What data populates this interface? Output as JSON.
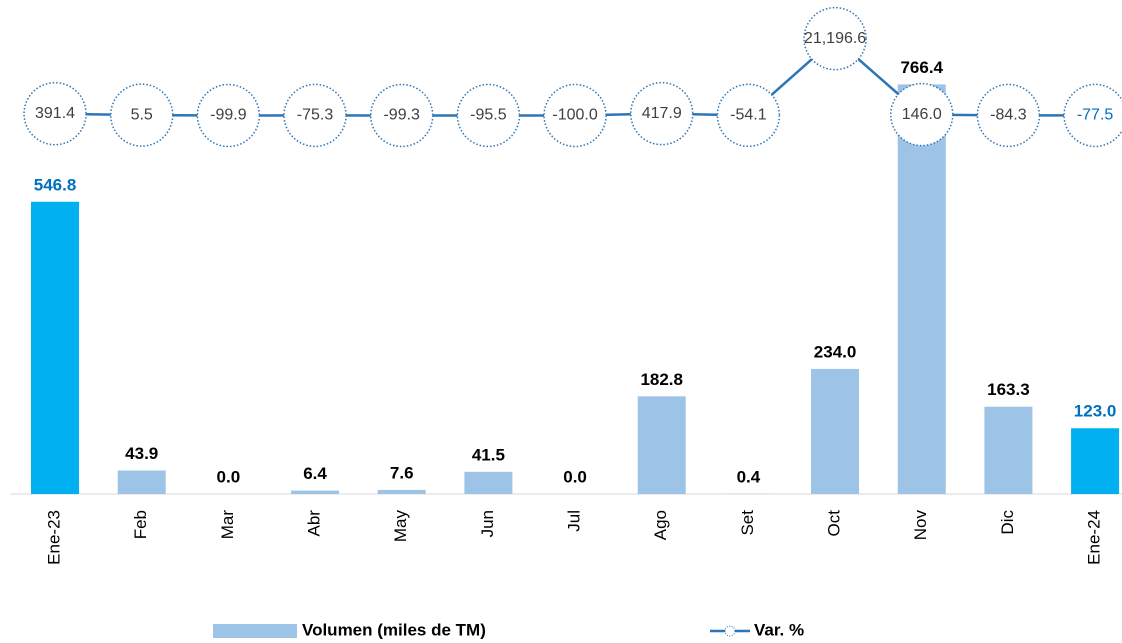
{
  "chart_data": {
    "type": "bar",
    "categories": [
      "Ene-23",
      "Feb",
      "Mar",
      "Abr",
      "May",
      "Jun",
      "Jul",
      "Ago",
      "Set",
      "Oct",
      "Nov",
      "Dic",
      "Ene-24"
    ],
    "series": [
      {
        "name": "Volumen (miles de TM)",
        "type": "bar",
        "axis": "y",
        "color": "#9dc3e6",
        "colors": [
          "#00b0f0",
          "#9dc3e6",
          "#9dc3e6",
          "#9dc3e6",
          "#9dc3e6",
          "#9dc3e6",
          "#9dc3e6",
          "#9dc3e6",
          "#9dc3e6",
          "#9dc3e6",
          "#9dc3e6",
          "#9dc3e6",
          "#00b0f0"
        ],
        "label_colors": [
          "#0070c0",
          "#000000",
          "#000000",
          "#000000",
          "#000000",
          "#000000",
          "#000000",
          "#000000",
          "#000000",
          "#000000",
          "#000000",
          "#000000",
          "#0070c0"
        ],
        "values": [
          546.8,
          43.9,
          0.0,
          6.4,
          7.6,
          41.5,
          0.0,
          182.8,
          0.4,
          234.0,
          766.4,
          163.3,
          123.0
        ],
        "value_labels": [
          "546.8",
          "43.9",
          "0.0",
          "6.4",
          "7.6",
          "41.5",
          "0.0",
          "182.8",
          "0.4",
          "234.0",
          "766.4",
          "163.3",
          "123.0"
        ]
      },
      {
        "name": "Var. %",
        "type": "line",
        "axis": "y2",
        "color": "#2e75b6",
        "label_colors": [
          "#404040",
          "#404040",
          "#404040",
          "#404040",
          "#404040",
          "#404040",
          "#404040",
          "#404040",
          "#404040",
          "#404040",
          "#404040",
          "#404040",
          "#0070c0"
        ],
        "values": [
          391.4,
          5.5,
          -99.9,
          -75.3,
          -99.3,
          -95.5,
          -100.0,
          417.9,
          -54.1,
          21196.6,
          146.0,
          -84.3,
          -77.5
        ],
        "value_labels": [
          "391.4",
          "5.5",
          "-99.9",
          "-75.3",
          "-99.3",
          "-95.5",
          "-100.0",
          "417.9",
          "-54.1",
          "21,196.6",
          "146.0",
          "-84.3",
          "-77.5"
        ]
      }
    ],
    "ylim": [
      0,
      900
    ],
    "y2lim": [
      -105000,
      28300
    ],
    "legend": "bottom"
  }
}
